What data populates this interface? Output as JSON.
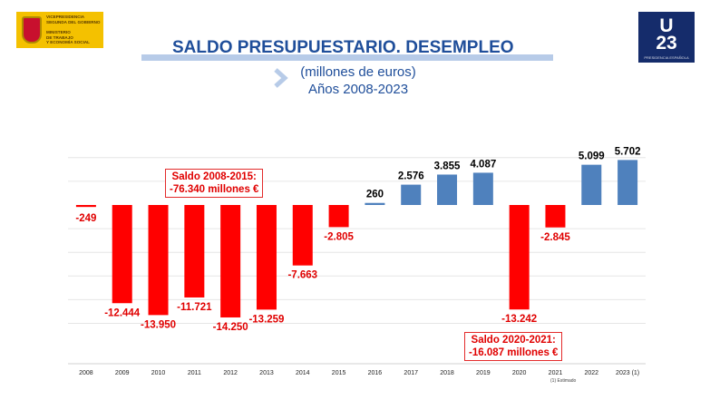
{
  "header": {
    "gov_logo_text": "VICEPRESIDENCIA\nSEGUNDA DEL GOBIERNO\n\nMINISTERIO\nDE TRABAJO\nY ECONOMÍA SOCIAL",
    "eu_logo_big": "U\n23",
    "eu_logo_small": "PRESIDENCIA ESPAÑOLA"
  },
  "colors": {
    "negative": "#ff0000",
    "positive": "#4f81bd",
    "title": "#1f4e9a"
  },
  "chart_data": {
    "type": "bar",
    "title": "SALDO PRESUPUESTARIO. DESEMPLEO",
    "subtitle_lines": [
      "(millones de euros)",
      "Años 2008-2023"
    ],
    "categories": [
      "2008",
      "2009",
      "2010",
      "2011",
      "2012",
      "2013",
      "2014",
      "2015",
      "2016",
      "2017",
      "2018",
      "2019",
      "2020",
      "2021",
      "2022",
      "2023 (1)"
    ],
    "values": [
      -249,
      -12444,
      -13950,
      -11721,
      -14250,
      -13259,
      -7663,
      -2805,
      260,
      2576,
      3855,
      4087,
      -13242,
      -2845,
      5099,
      5702
    ],
    "labels": [
      "-249",
      "-12.444",
      "-13.950",
      "-11.721",
      "-14.250",
      "-13.259",
      "-7.663",
      "-2.805",
      "260",
      "2.576",
      "3.855",
      "4.087",
      "-13.242",
      "-2.845",
      "5.099",
      "5.702"
    ],
    "ylim": [
      -16000,
      7000
    ],
    "xlabel": "",
    "ylabel": "",
    "grid": true,
    "annotations": [
      "Saldo 2008-2015:\n-76.340 millones €",
      "Saldo 2020-2021:\n-16.087 millones €"
    ],
    "footnote": "(1) Estimado"
  }
}
